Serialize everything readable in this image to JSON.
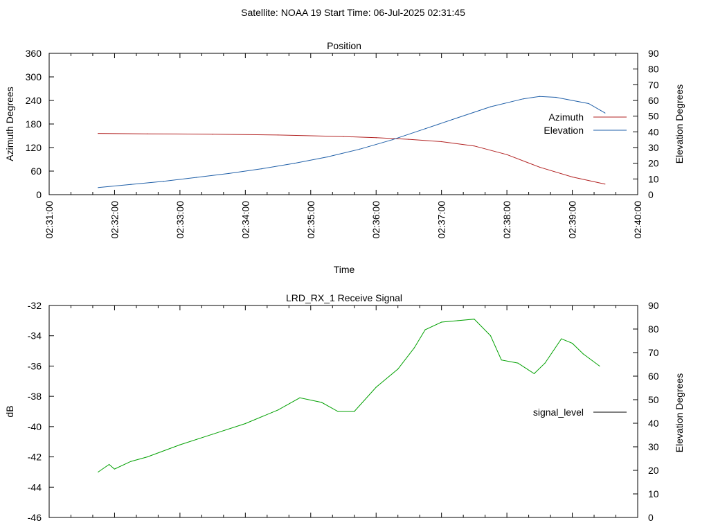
{
  "header": {
    "title": "Satellite: NOAA 19    Start Time: 06-Jul-2025 02:31:45"
  },
  "colors": {
    "azimuth": "#b22222",
    "elevation": "#1f5fa8",
    "signal": "#00a000",
    "axis": "#000000"
  },
  "chart_data": [
    {
      "type": "line",
      "title": "Position",
      "xlabel": "Time",
      "ylabel": "Azimuth Degrees",
      "y2label": "Elevation Degrees",
      "xlim": [
        "02:31:00",
        "02:40:00"
      ],
      "xticks": [
        "02:31:00",
        "02:32:00",
        "02:33:00",
        "02:34:00",
        "02:35:00",
        "02:36:00",
        "02:37:00",
        "02:38:00",
        "02:39:00",
        "02:40:00"
      ],
      "ylim": [
        0,
        360
      ],
      "yticks": [
        0,
        60,
        120,
        180,
        240,
        300,
        360
      ],
      "y2lim": [
        0,
        90
      ],
      "y2ticks": [
        0,
        10,
        20,
        30,
        40,
        50,
        60,
        70,
        80,
        90
      ],
      "legend": "top-right",
      "grid": false,
      "series": [
        {
          "name": "Azimuth",
          "axis": "y",
          "x": [
            "02:31:45",
            "02:32:30",
            "02:33:30",
            "02:34:30",
            "02:35:30",
            "02:36:00",
            "02:36:30",
            "02:37:00",
            "02:37:30",
            "02:38:00",
            "02:38:30",
            "02:39:00",
            "02:39:30"
          ],
          "values": [
            156,
            155,
            154,
            152,
            148,
            145,
            141,
            135,
            124,
            102,
            70,
            45,
            27
          ]
        },
        {
          "name": "Elevation",
          "axis": "y2",
          "x": [
            "02:31:45",
            "02:32:15",
            "02:32:45",
            "02:33:15",
            "02:33:45",
            "02:34:15",
            "02:34:45",
            "02:35:15",
            "02:35:45",
            "02:36:15",
            "02:36:45",
            "02:37:15",
            "02:37:45",
            "02:38:15",
            "02:38:30",
            "02:38:45",
            "02:39:15",
            "02:39:30"
          ],
          "values": [
            4.5,
            6.5,
            8.5,
            11,
            13.5,
            16.5,
            20,
            24,
            29,
            35,
            42,
            49,
            56,
            61,
            62.5,
            62,
            58,
            52
          ]
        }
      ]
    },
    {
      "type": "line",
      "title": "LRD_RX_1 Receive Signal",
      "xlabel": "",
      "ylabel": "dB",
      "y2label": "Elevation Degrees",
      "xlim": [
        "02:31:00",
        "02:40:00"
      ],
      "ylim": [
        -46,
        -32
      ],
      "yticks": [
        -46,
        -44,
        -42,
        -40,
        -38,
        -36,
        -34,
        -32
      ],
      "y2lim": [
        0,
        90
      ],
      "y2ticks": [
        0,
        10,
        20,
        30,
        40,
        50,
        60,
        70,
        80,
        90
      ],
      "legend": "right",
      "grid": false,
      "series": [
        {
          "name": "signal_level",
          "axis": "y",
          "x": [
            "02:31:45",
            "02:31:55",
            "02:32:00",
            "02:32:15",
            "02:32:30",
            "02:33:00",
            "02:33:30",
            "02:34:00",
            "02:34:30",
            "02:34:50",
            "02:35:10",
            "02:35:25",
            "02:35:40",
            "02:36:00",
            "02:36:20",
            "02:36:35",
            "02:36:45",
            "02:37:00",
            "02:37:15",
            "02:37:30",
            "02:37:45",
            "02:37:55",
            "02:38:10",
            "02:38:25",
            "02:38:35",
            "02:38:50",
            "02:39:00",
            "02:39:10",
            "02:39:25"
          ],
          "values": [
            -43.0,
            -42.5,
            -42.8,
            -42.3,
            -42.0,
            -41.2,
            -40.5,
            -39.8,
            -38.9,
            -38.1,
            -38.4,
            -39.0,
            -39.0,
            -37.4,
            -36.2,
            -34.8,
            -33.6,
            -33.1,
            -33.0,
            -32.9,
            -34.0,
            -35.6,
            -35.8,
            -36.5,
            -35.8,
            -34.2,
            -34.5,
            -35.2,
            -36.0
          ]
        }
      ]
    }
  ]
}
